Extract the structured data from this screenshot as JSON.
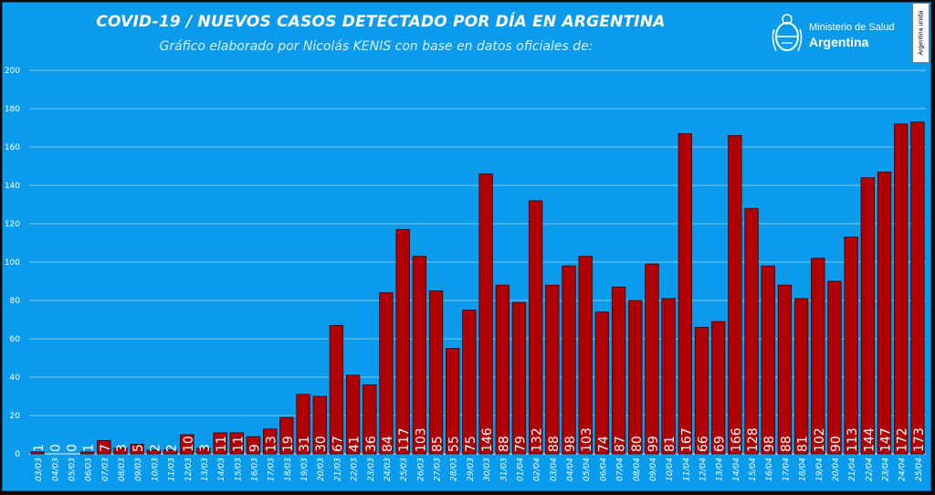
{
  "header": {
    "title": "COVID-19  /  NUEVOS CASOS DETECTADO POR DÍA EN ARGENTINA",
    "subtitle": "Gráfico elaborado por Nicolás KENIS con base en datos oficiales de:"
  },
  "logo": {
    "line1": "Ministerio de Salud",
    "line2": "Argentina",
    "badge": "Argentina unida"
  },
  "colors": {
    "background": "#0a9bec",
    "bar": "#b00000",
    "bar_border": "#400000",
    "text": "#ffffff"
  },
  "chart_data": {
    "type": "bar",
    "ylim": [
      0,
      200
    ],
    "yticks": [
      0,
      20,
      40,
      60,
      80,
      100,
      120,
      140,
      160,
      180,
      200
    ],
    "grid": true,
    "categories": [
      "03/03",
      "04/03",
      "05/03",
      "06/03",
      "07/03",
      "08/03",
      "09/03",
      "10/03",
      "11/03",
      "12/03",
      "13/03",
      "14/03",
      "15/03",
      "16/03",
      "17/03",
      "18/03",
      "19/03",
      "20/03",
      "21/03",
      "22/03",
      "23/03",
      "24/03",
      "25/03",
      "26/03",
      "27/03",
      "28/03",
      "29/03",
      "30/03",
      "31/03",
      "01/04",
      "02/04",
      "03/04",
      "04/04",
      "05/04",
      "06/04",
      "07/04",
      "08/04",
      "09/04",
      "10/04",
      "11/04",
      "12/04",
      "13/04",
      "14/04",
      "15/04",
      "16/04",
      "17/04",
      "18/04",
      "19/04",
      "20/04",
      "21/04",
      "22/04",
      "23/04",
      "24/04",
      "25/04"
    ],
    "values": [
      1,
      0,
      0,
      1,
      7,
      3,
      5,
      2,
      2,
      10,
      3,
      11,
      11,
      9,
      13,
      19,
      31,
      30,
      67,
      41,
      36,
      84,
      117,
      103,
      85,
      55,
      75,
      146,
      88,
      79,
      132,
      88,
      98,
      103,
      74,
      87,
      80,
      99,
      81,
      167,
      66,
      69,
      166,
      128,
      98,
      88,
      81,
      102,
      90,
      113,
      144,
      147,
      172,
      173
    ]
  }
}
